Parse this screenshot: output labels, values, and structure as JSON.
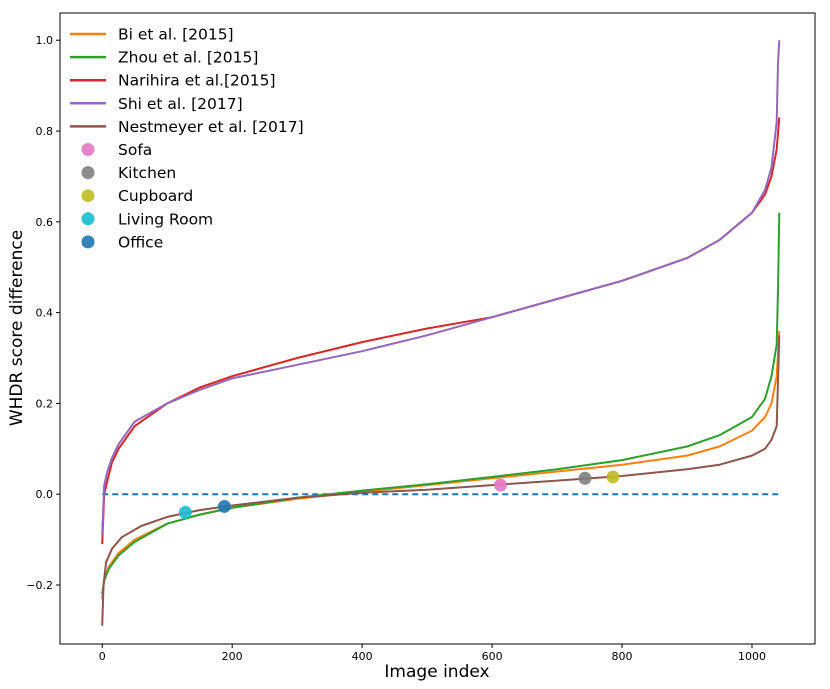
{
  "chart_data": {
    "type": "line",
    "xlabel": "Image index",
    "ylabel": "WHDR score difference",
    "xlim": [
      -65,
      1097
    ],
    "ylim": [
      -0.33,
      1.06
    ],
    "xticks": [
      0,
      200,
      400,
      600,
      800,
      1000
    ],
    "xtick_labels": [
      "0",
      "200",
      "400",
      "600",
      "800",
      "1000"
    ],
    "yticks": [
      -0.2,
      0.0,
      0.2,
      0.4,
      0.6,
      0.8,
      1.0
    ],
    "ytick_labels": [
      "−0.2",
      "0.0",
      "0.2",
      "0.4",
      "0.6",
      "0.8",
      "1.0"
    ],
    "legend_position": "top-left",
    "series": [
      {
        "name": "Bi et al. [2015]",
        "color": "#ff7f0e",
        "x": [
          0,
          3,
          10,
          25,
          50,
          100,
          150,
          200,
          300,
          400,
          500,
          600,
          700,
          800,
          900,
          950,
          1000,
          1020,
          1030,
          1038,
          1042
        ],
        "y": [
          -0.23,
          -0.19,
          -0.16,
          -0.13,
          -0.1,
          -0.065,
          -0.045,
          -0.03,
          -0.01,
          0.005,
          0.02,
          0.035,
          0.05,
          0.065,
          0.085,
          0.105,
          0.14,
          0.17,
          0.2,
          0.26,
          0.36
        ]
      },
      {
        "name": "Zhou et al. [2015]",
        "color": "#2ca02c",
        "x": [
          0,
          3,
          10,
          25,
          50,
          100,
          150,
          200,
          300,
          400,
          500,
          600,
          700,
          800,
          900,
          950,
          1000,
          1020,
          1030,
          1038,
          1040,
          1042
        ],
        "y": [
          -0.22,
          -0.19,
          -0.165,
          -0.135,
          -0.105,
          -0.065,
          -0.045,
          -0.03,
          -0.008,
          0.008,
          0.022,
          0.038,
          0.055,
          0.075,
          0.105,
          0.13,
          0.17,
          0.21,
          0.26,
          0.33,
          0.45,
          0.62
        ]
      },
      {
        "name": "Narihira et al.[2015]",
        "color": "#d62728",
        "x": [
          0,
          3,
          8,
          15,
          25,
          50,
          100,
          150,
          200,
          300,
          400,
          500,
          600,
          700,
          800,
          900,
          950,
          1000,
          1020,
          1030,
          1038,
          1042
        ],
        "y": [
          -0.11,
          0.0,
          0.03,
          0.07,
          0.1,
          0.15,
          0.2,
          0.235,
          0.26,
          0.3,
          0.335,
          0.365,
          0.39,
          0.43,
          0.47,
          0.52,
          0.56,
          0.62,
          0.66,
          0.7,
          0.76,
          0.83
        ]
      },
      {
        "name": "Shi et al. [2017]",
        "color": "#9467bd",
        "x": [
          0,
          3,
          8,
          15,
          25,
          50,
          100,
          150,
          200,
          300,
          400,
          500,
          600,
          700,
          800,
          900,
          950,
          1000,
          1020,
          1030,
          1038,
          1040,
          1042
        ],
        "y": [
          -0.09,
          0.02,
          0.05,
          0.08,
          0.11,
          0.16,
          0.2,
          0.23,
          0.255,
          0.285,
          0.315,
          0.35,
          0.39,
          0.43,
          0.47,
          0.52,
          0.56,
          0.62,
          0.67,
          0.72,
          0.82,
          0.95,
          1.0
        ]
      },
      {
        "name": "Nestmeyer et al. [2017]",
        "color": "#8c564b",
        "x": [
          0,
          2,
          6,
          15,
          30,
          60,
          100,
          150,
          200,
          300,
          400,
          500,
          600,
          700,
          800,
          900,
          950,
          1000,
          1020,
          1030,
          1038,
          1042
        ],
        "y": [
          -0.29,
          -0.2,
          -0.15,
          -0.12,
          -0.095,
          -0.07,
          -0.05,
          -0.035,
          -0.025,
          -0.008,
          0.003,
          0.01,
          0.02,
          0.03,
          0.04,
          0.055,
          0.065,
          0.085,
          0.1,
          0.12,
          0.15,
          0.35
        ]
      }
    ],
    "baseline": {
      "y": 0.0,
      "x_range": [
        0,
        1042
      ],
      "color": "#1f77b4",
      "style": "dashed"
    },
    "markers": [
      {
        "name": "Sofa",
        "x": 613,
        "y": 0.02,
        "color": "#e377c2"
      },
      {
        "name": "Kitchen",
        "x": 743,
        "y": 0.035,
        "color": "#7f7f7f"
      },
      {
        "name": "Cupboard",
        "x": 786,
        "y": 0.038,
        "color": "#bcbd22"
      },
      {
        "name": "Living Room",
        "x": 128,
        "y": -0.04,
        "color": "#17becf"
      },
      {
        "name": "Office",
        "x": 188,
        "y": -0.027,
        "color": "#1f77b4"
      }
    ]
  }
}
